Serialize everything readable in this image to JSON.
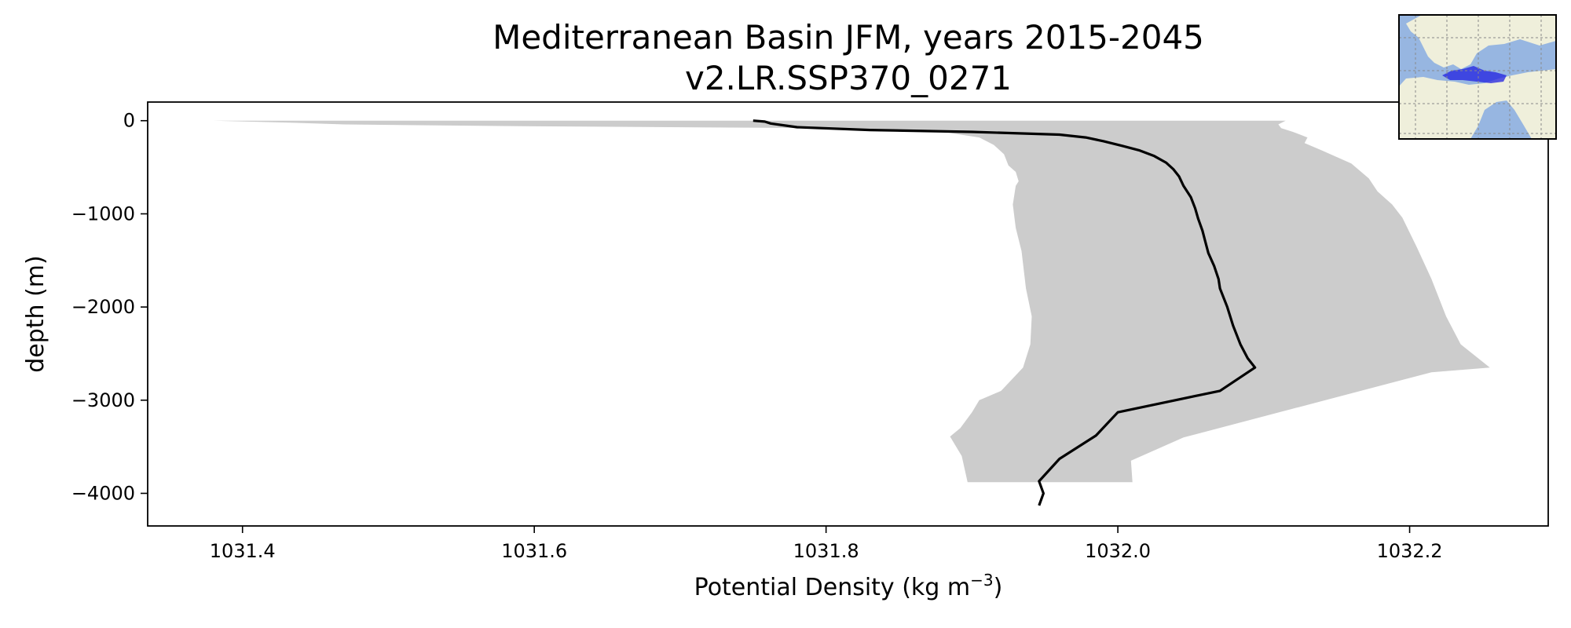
{
  "chart_data": {
    "type": "line",
    "title": "Mediterranean Basin JFM, years 2015-2045",
    "subtitle": "v2.LR.SSP370_0271",
    "xlabel": "Potential Density (kg m",
    "xlabel_sup": "−3",
    "xlabel_suffix": ")",
    "ylabel": "depth (m)",
    "xlim": [
      1031.335,
      1032.295
    ],
    "ylim": [
      -4350,
      200
    ],
    "xticks": [
      1031.4,
      1031.6,
      1031.8,
      1032.0,
      1032.2
    ],
    "xtick_labels": [
      "1031.4",
      "1031.6",
      "1031.8",
      "1032.0",
      "1032.2"
    ],
    "yticks": [
      0,
      -1000,
      -2000,
      -3000,
      -4000
    ],
    "ytick_labels": [
      "0",
      "−1000",
      "−2000",
      "−3000",
      "−4000"
    ],
    "grid": false,
    "colors": {
      "line": "#000000",
      "band": "#cccccc"
    },
    "series": [
      {
        "x": [
          1031.75,
          1031.758,
          1031.762,
          1031.78,
          1031.83,
          1031.9,
          1031.96,
          1031.978,
          1031.99,
          1032.003,
          1032.015,
          1032.025,
          1032.033,
          1032.038,
          1032.042,
          1032.045,
          1032.05,
          1032.053,
          1032.055,
          1032.058,
          1032.06,
          1032.062,
          1032.066,
          1032.069,
          1032.07,
          1032.075,
          1032.079,
          1032.084,
          1032.089,
          1032.094,
          1032.07,
          1032.0,
          1031.985,
          1031.96,
          1031.946,
          1031.949,
          1031.946
        ],
        "y": [
          0,
          -10,
          -30,
          -70,
          -100,
          -120,
          -150,
          -180,
          -220,
          -270,
          -320,
          -380,
          -450,
          -520,
          -600,
          -700,
          -820,
          -940,
          -1050,
          -1180,
          -1300,
          -1420,
          -1560,
          -1700,
          -1800,
          -2000,
          -2200,
          -2400,
          -2550,
          -2650,
          -2900,
          -3130,
          -3380,
          -3630,
          -3870,
          -4000,
          -4130
        ]
      }
    ],
    "band": {
      "upper": {
        "x": [
          1032.115,
          1032.11,
          1032.112,
          1032.12,
          1032.13,
          1032.128,
          1032.14,
          1032.16,
          1032.172,
          1032.178,
          1032.188,
          1032.195,
          1032.2,
          1032.205,
          1032.215,
          1032.225,
          1032.235,
          1032.255,
          1032.215,
          1032.045,
          1032.009,
          1032.01
        ],
        "y": [
          0,
          -40,
          -80,
          -120,
          -180,
          -240,
          -320,
          -460,
          -620,
          -760,
          -900,
          -1040,
          -1200,
          -1360,
          -1700,
          -2100,
          -2400,
          -2650,
          -2700,
          -3400,
          -3650,
          -3880
        ]
      },
      "lower": {
        "x": [
          1031.38,
          1031.43,
          1031.47,
          1031.6,
          1031.8,
          1031.88,
          1031.905,
          1031.915,
          1031.922,
          1031.925,
          1031.93,
          1031.932,
          1031.93,
          1031.928,
          1031.93,
          1031.934,
          1031.937,
          1031.941,
          1031.94,
          1031.935,
          1031.92,
          1031.905,
          1031.9,
          1031.892,
          1031.885,
          1031.893,
          1031.897
        ],
        "y": [
          0,
          -20,
          -40,
          -60,
          -80,
          -120,
          -180,
          -260,
          -360,
          -480,
          -550,
          -650,
          -700,
          -900,
          -1150,
          -1400,
          -1800,
          -2100,
          -2400,
          -2650,
          -2900,
          -3000,
          -3130,
          -3300,
          -3390,
          -3600,
          -3880
        ]
      }
    }
  },
  "inset_map": {
    "land_color": "#efefdb",
    "ocean_color": "#97b6e1",
    "highlight_color": "#2020e0"
  }
}
